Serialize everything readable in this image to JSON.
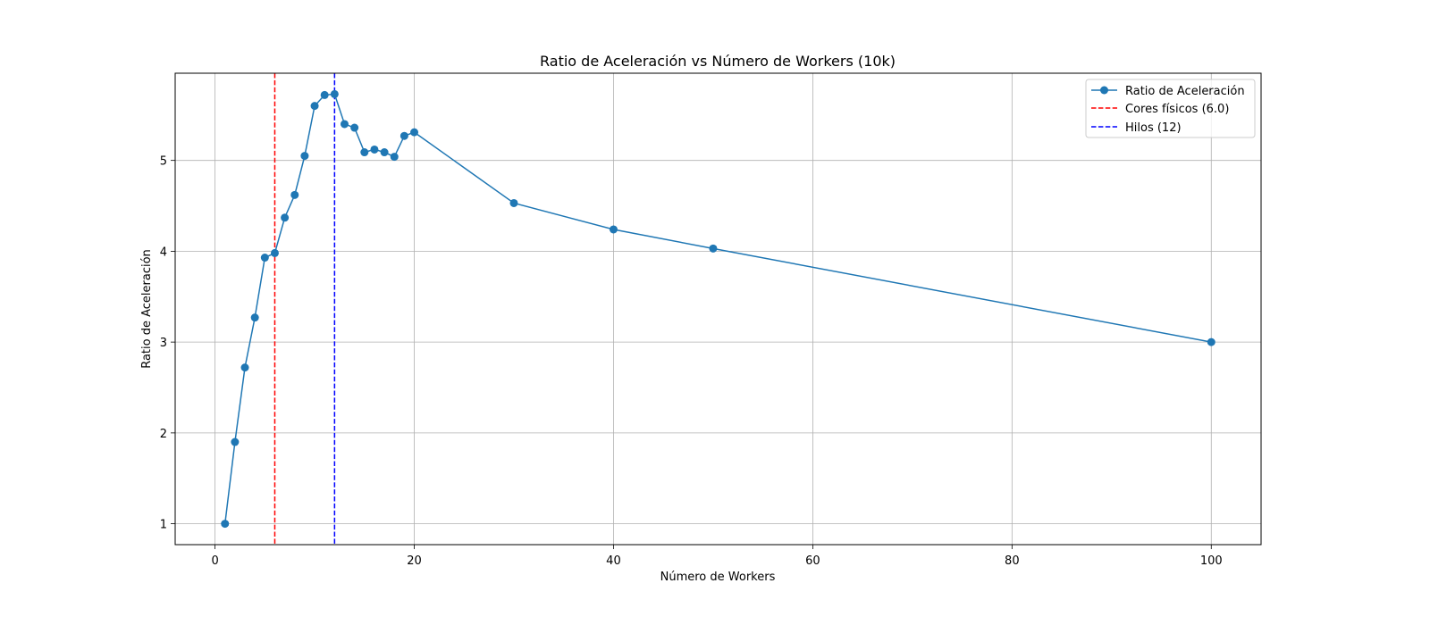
{
  "chart_data": {
    "type": "line",
    "title": "Ratio de Aceleración vs Número de Workers (10k)",
    "xlabel": "Número de Workers",
    "ylabel": "Ratio de Aceleración",
    "xlim": [
      -4,
      105
    ],
    "ylim": [
      0.77,
      5.96
    ],
    "x_ticks": [
      0,
      20,
      40,
      60,
      80,
      100
    ],
    "y_ticks": [
      1,
      2,
      3,
      4,
      5
    ],
    "grid": true,
    "legend_position": "top-right",
    "series": [
      {
        "name": "Ratio de Aceleración",
        "color": "#1f77b4",
        "marker": "circle",
        "x": [
          1,
          2,
          3,
          4,
          5,
          6,
          7,
          8,
          9,
          10,
          11,
          12,
          13,
          14,
          15,
          16,
          17,
          18,
          19,
          20,
          30,
          40,
          50,
          100
        ],
        "y": [
          1.0,
          1.9,
          2.72,
          3.27,
          3.93,
          3.98,
          4.37,
          4.62,
          5.05,
          5.6,
          5.72,
          5.73,
          5.4,
          5.36,
          5.09,
          5.12,
          5.09,
          5.04,
          5.27,
          5.31,
          4.53,
          4.24,
          4.03,
          3.0
        ]
      }
    ],
    "reference_lines": [
      {
        "name": "Cores físicos (6.0)",
        "x": 6,
        "color": "#ff0000",
        "style": "dashed"
      },
      {
        "name": "Hilos (12)",
        "x": 12,
        "color": "#0000ff",
        "style": "dashed"
      }
    ]
  }
}
